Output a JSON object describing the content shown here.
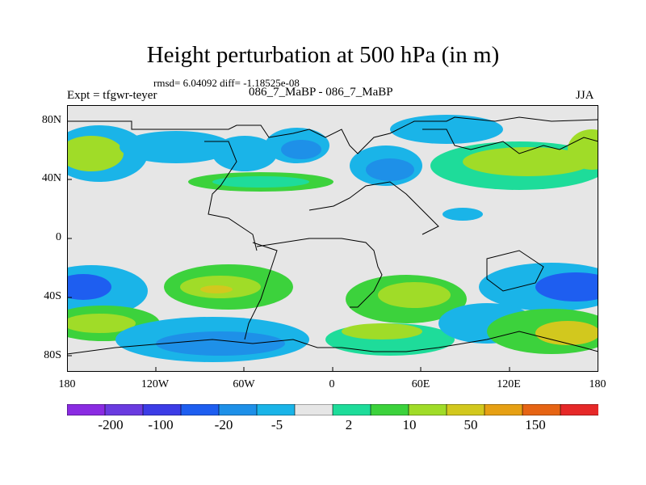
{
  "title": "Height perturbation at 500 hPa (in m)",
  "stats": "rmsd= 6.04092 diff= -1.18525e-08",
  "experiment": "Expt = tfgwr-teyer",
  "diff_label": "086_7_MaBP - 086_7_MaBP",
  "season": "JJA",
  "axes": {
    "lat_ticks": [
      "80N",
      "40N",
      "0",
      "40S",
      "80S"
    ],
    "lon_ticks": [
      "180",
      "120W",
      "60W",
      "0",
      "60E",
      "120E",
      "180"
    ]
  },
  "colorbar": {
    "colors": [
      "#8a2be2",
      "#6a3be0",
      "#3c3ce6",
      "#1e5ef0",
      "#1e90e8",
      "#1ab4e8",
      "#e6e6e6",
      "#1edc9a",
      "#3cd23c",
      "#a0dc28",
      "#d2c81e",
      "#e6a014",
      "#e66414",
      "#e62828"
    ],
    "labels": [
      "-200",
      "-100",
      "-20",
      "-5",
      "2",
      "10",
      "50",
      "150"
    ]
  }
}
